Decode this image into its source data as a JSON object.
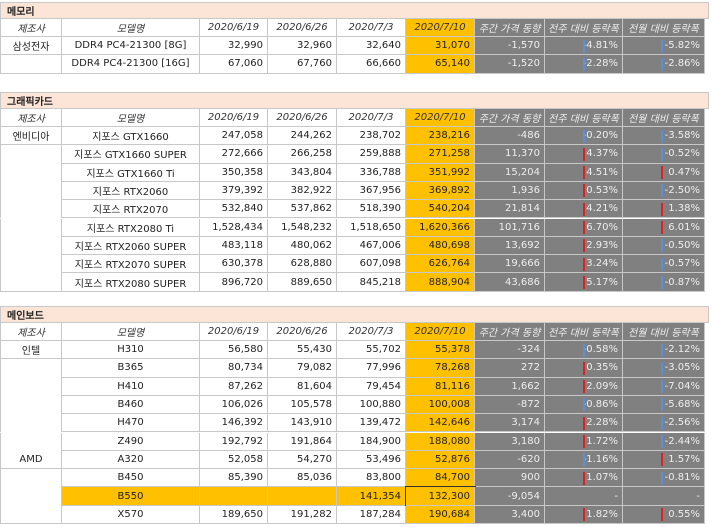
{
  "columns": [
    "제조사",
    "모델명",
    "2020/6/19",
    "2020/6/26",
    "2020/7/3",
    "2020/7/10",
    "주간 가격 동향",
    "전주 대비 등락폭",
    "전월 대비 등락폭"
  ],
  "sections": [
    {
      "title": "메모리",
      "rows": [
        [
          "삼성전자",
          "DDR4 PC4-21300 [8G]",
          "32,990",
          "32,960",
          "32,640",
          "31,070",
          "-1,570",
          "-4.81%",
          "-5.82%"
        ],
        [
          null,
          "DDR4 PC4-21300 [16G]",
          "67,060",
          "67,760",
          "66,660",
          "65,140",
          "-1,520",
          "-2.28%",
          "-2.86%"
        ]
      ]
    },
    {
      "title": "그래픽카드",
      "rows": [
        [
          "엔비디아",
          "지포스 GTX1660",
          "247,058",
          "244,262",
          "238,702",
          "238,216",
          "-486",
          "-0.20%",
          "-3.58%"
        ],
        [
          null,
          "지포스 GTX1660 SUPER",
          "272,666",
          "266,258",
          "259,888",
          "271,258",
          "11,370",
          "4.37%",
          "-0.52%"
        ],
        [
          null,
          "지포스 GTX1660 Ti",
          "350,358",
          "343,804",
          "336,788",
          "351,992",
          "15,204",
          "4.51%",
          "0.47%"
        ],
        [
          null,
          "지포스 RTX2060",
          "379,392",
          "382,922",
          "367,956",
          "369,892",
          "1,936",
          "0.53%",
          "-2.50%"
        ],
        [
          null,
          "지포스 RTX2070",
          "532,840",
          "537,862",
          "518,390",
          "540,204",
          "21,814",
          "4.21%",
          "1.38%"
        ],
        [
          null,
          "지포스 RTX2080 Ti",
          "1,528,434",
          "1,548,232",
          "1,518,650",
          "1,620,366",
          "101,716",
          "6.70%",
          "6.01%"
        ],
        [
          null,
          "지포스 RTX2060 SUPER",
          "483,118",
          "480,062",
          "467,006",
          "480,698",
          "13,692",
          "2.93%",
          "-0.50%"
        ],
        [
          null,
          "지포스 RTX2070 SUPER",
          "630,378",
          "628,880",
          "607,098",
          "626,764",
          "19,666",
          "3.24%",
          "-0.57%"
        ],
        [
          null,
          "지포스 RTX2080 SUPER",
          "896,720",
          "889,650",
          "845,218",
          "888,904",
          "43,686",
          "5.17%",
          "-0.87%"
        ]
      ]
    },
    {
      "title": "메인보드",
      "highlight_row": 8,
      "rows": [
        [
          "인텔",
          "H310",
          "56,580",
          "55,430",
          "55,702",
          "55,378",
          "-324",
          "-0.58%",
          "-2.12%"
        ],
        [
          null,
          "B365",
          "80,734",
          "79,082",
          "77,996",
          "78,268",
          "272",
          "0.35%",
          "-3.05%"
        ],
        [
          null,
          "H410",
          "87,262",
          "81,604",
          "79,454",
          "81,116",
          "1,662",
          "2.09%",
          "-7.04%"
        ],
        [
          null,
          "B460",
          "106,026",
          "105,578",
          "100,880",
          "100,008",
          "-872",
          "-0.86%",
          "-5.68%"
        ],
        [
          null,
          "H470",
          "146,392",
          "143,910",
          "139,472",
          "142,646",
          "3,174",
          "2.28%",
          "-2.56%"
        ],
        [
          null,
          "Z490",
          "192,792",
          "191,864",
          "184,900",
          "188,080",
          "3,180",
          "1.72%",
          "-2.44%"
        ],
        [
          "AMD",
          "A320",
          "52,058",
          "54,270",
          "53,496",
          "52,876",
          "-620",
          "-1.16%",
          "1.57%"
        ],
        [
          null,
          "B450",
          "85,390",
          "85,036",
          "83,800",
          "84,700",
          "900",
          "1.07%",
          "-0.81%"
        ],
        [
          null,
          "B550",
          null,
          null,
          "141,354",
          "132,300",
          "-9,054",
          "-",
          "-"
        ],
        [
          null,
          "X570",
          "189,650",
          "191,282",
          "187,284",
          "190,684",
          "3,400",
          "1.82%",
          "0.55%"
        ]
      ]
    }
  ]
}
